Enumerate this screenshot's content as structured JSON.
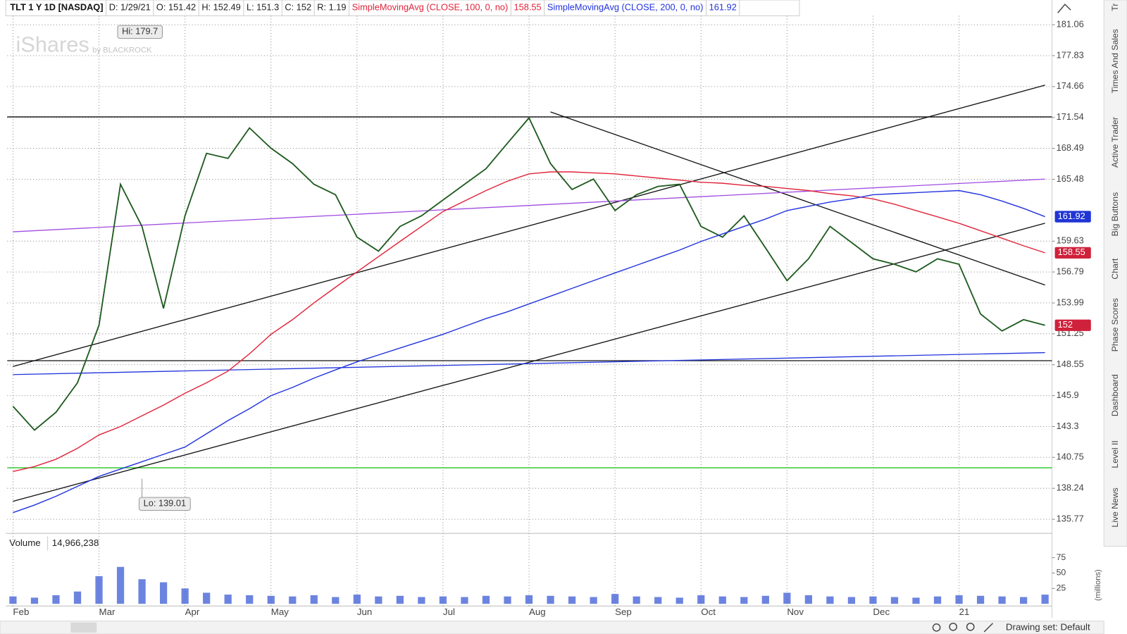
{
  "quote": [
    "D: 1/29/21",
    "O: 151.42",
    "H: 152.49",
    "L: 151.3",
    "C: 152",
    "R: 1.19"
  ],
  "watermark": {
    "brand": "iShares",
    "by": "by BLACKROCK"
  },
  "sidebar_tabs": [
    "Tr",
    "Times And Sales",
    "Active Trader",
    "Big Buttons",
    "Chart",
    "Phase Scores",
    "Dashboard",
    "Level II",
    "Live News"
  ],
  "footer": {
    "drawing_set": "Drawing set: Default"
  },
  "chart_data": {
    "type": "line",
    "log": true,
    "grid": true,
    "categories": [
      "Feb",
      null,
      null,
      null,
      "Mar",
      null,
      null,
      null,
      "Apr",
      null,
      null,
      null,
      "May",
      null,
      null,
      null,
      "Jun",
      null,
      null,
      null,
      "Jul",
      null,
      null,
      null,
      "Aug",
      null,
      null,
      null,
      "Sep",
      null,
      null,
      null,
      "Oct",
      null,
      null,
      null,
      "Nov",
      null,
      null,
      null,
      "Dec",
      null,
      null,
      null,
      "21",
      null,
      null,
      null,
      null
    ],
    "series": [
      {
        "name": "TLT 1 Y 1D [NASDAQ]",
        "color": "#1f5a1f",
        "last_label": "152",
        "label_color": "#d0213a",
        "values": [
          145,
          143,
          144.5,
          147,
          152,
          165,
          161,
          153.5,
          162,
          168,
          167.5,
          170.5,
          168.5,
          167,
          165,
          164,
          160,
          158.7,
          161,
          162,
          163.5,
          165,
          166.5,
          169,
          171.5,
          167,
          164.5,
          165.5,
          162.5,
          164,
          164.8,
          165,
          161,
          160,
          162,
          159,
          156,
          158,
          161,
          159.5,
          158,
          157.5,
          156.8,
          158,
          157.5,
          153,
          151.5,
          152.5,
          152
        ]
      },
      {
        "name": "SimpleMovingAvg (CLOSE, 100, 0, no)",
        "color": "#e0243a",
        "last_label": "158.55",
        "label_color": "#d0213a",
        "values": [
          139.6,
          140,
          140.6,
          141.5,
          142.6,
          143.3,
          144.2,
          145.1,
          146.1,
          147,
          148,
          149.5,
          151.2,
          152.5,
          154,
          155.4,
          156.8,
          158.2,
          159.6,
          161,
          162.4,
          163.4,
          164.4,
          165.3,
          166,
          166.2,
          166.2,
          166.1,
          166,
          165.8,
          165.6,
          165.4,
          165.2,
          165.1,
          164.9,
          164.8,
          164.6,
          164.4,
          164.1,
          163.9,
          163.6,
          163.1,
          162.5,
          161.9,
          161.3,
          160.6,
          159.9,
          159.2,
          158.55
        ]
      },
      {
        "name": "SimpleMovingAvg (CLOSE, 200, 0, no)",
        "color": "#2233dd",
        "last_label": "161.92",
        "label_color": "#1f35d6",
        "values": [
          136.3,
          136.9,
          137.6,
          138.4,
          139.2,
          139.8,
          140.4,
          141,
          141.6,
          142.7,
          143.8,
          144.8,
          145.9,
          146.6,
          147.4,
          148.1,
          148.8,
          149.4,
          150,
          150.6,
          151.2,
          151.9,
          152.6,
          153.2,
          153.9,
          154.6,
          155.3,
          156,
          156.7,
          157.4,
          158.1,
          158.8,
          159.6,
          160.3,
          161,
          161.7,
          162.5,
          162.9,
          163.3,
          163.6,
          164,
          164.1,
          164.2,
          164.3,
          164.4,
          164,
          163.4,
          162.7,
          161.92
        ]
      }
    ],
    "ylim": [
      135,
      182
    ],
    "yticks": [
      181.06,
      177.83,
      174.66,
      171.54,
      168.49,
      165.48,
      159.63,
      156.79,
      153.99,
      151.25,
      148.55,
      145.9,
      143.3,
      140.75,
      138.24,
      135.77
    ],
    "levels": [
      {
        "value": 171.6,
        "color": "#111111"
      },
      {
        "value": 148.9,
        "color": "#111111"
      },
      {
        "value": 139.9,
        "color": "#22c322"
      }
    ],
    "trendlines": [
      {
        "x": [
          0,
          48
        ],
        "y": [
          137.2,
          161.3
        ],
        "color": "#111111"
      },
      {
        "x": [
          0,
          48
        ],
        "y": [
          148.4,
          174.8
        ],
        "color": "#111111"
      },
      {
        "x": [
          25,
          48
        ],
        "y": [
          172.1,
          155.6
        ],
        "color": "#111111"
      },
      {
        "x": [
          0,
          48
        ],
        "y": [
          160.5,
          165.5
        ],
        "color": "#a04de0"
      },
      {
        "x": [
          0,
          48
        ],
        "y": [
          147.7,
          149.6
        ],
        "color": "#2233dd"
      }
    ],
    "annotations": [
      {
        "text": "Hi: 179.7",
        "x": 5,
        "y": 179.7
      },
      {
        "text": "Lo: 139.01",
        "x": 6,
        "y": 139.01
      }
    ],
    "volume": {
      "label": "Volume",
      "value_label": "14,966,238",
      "unit_label": "(millions)",
      "color": "#3b5bd6",
      "values": [
        12,
        10,
        14,
        20,
        45,
        60,
        40,
        35,
        25,
        18,
        15,
        14,
        13,
        12,
        14,
        11,
        15,
        12,
        13,
        11,
        12,
        11,
        13,
        12,
        14,
        13,
        12,
        11,
        16,
        12,
        11,
        10,
        14,
        12,
        11,
        13,
        18,
        14,
        12,
        11,
        12,
        11,
        10,
        12,
        14,
        13,
        12,
        11,
        14.966238
      ],
      "ylim": [
        0,
        90
      ],
      "yticks": [
        25,
        50,
        75
      ]
    }
  }
}
